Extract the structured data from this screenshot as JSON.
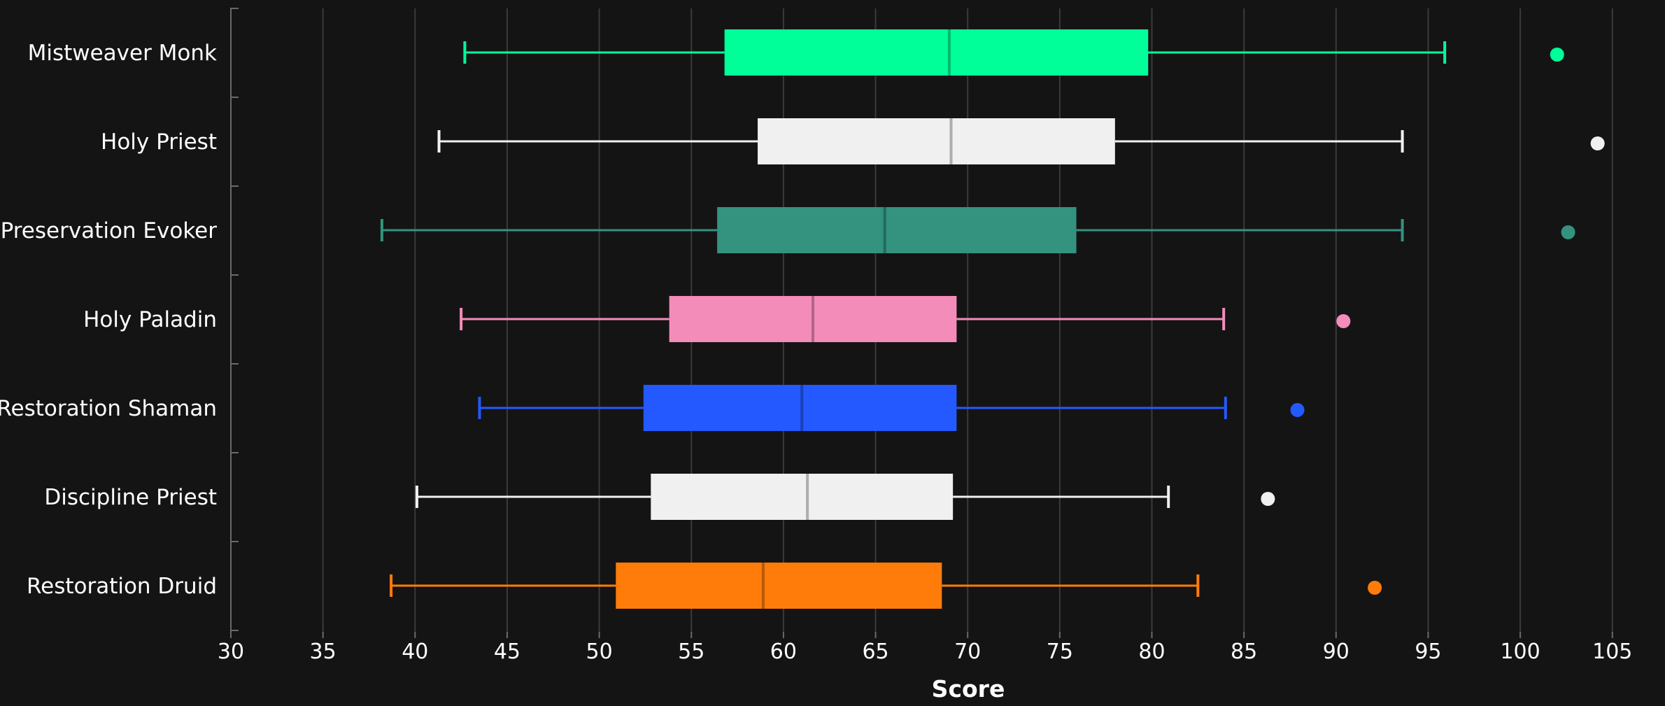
{
  "chart_data": {
    "type": "boxplot",
    "orientation": "horizontal",
    "xlabel": "Score",
    "xlim": [
      30,
      107
    ],
    "xticks": [
      30,
      35,
      40,
      45,
      50,
      55,
      60,
      65,
      70,
      75,
      80,
      85,
      90,
      95,
      100,
      105
    ],
    "grid": "vertical",
    "background": "#141414",
    "series": [
      {
        "name": "Mistweaver Monk",
        "color": "#00FF98",
        "whisker_low": 42.7,
        "q1": 56.8,
        "median": 69.0,
        "q3": 79.8,
        "whisker_high": 95.9,
        "outliers": [
          102.0
        ]
      },
      {
        "name": "Holy Priest",
        "color": "#F0F0F0",
        "whisker_low": 41.3,
        "q1": 58.6,
        "median": 69.1,
        "q3": 78.0,
        "whisker_high": 93.6,
        "outliers": [
          104.2
        ]
      },
      {
        "name": "Preservation Evoker",
        "color": "#33937F",
        "whisker_low": 38.2,
        "q1": 56.4,
        "median": 65.5,
        "q3": 75.9,
        "whisker_high": 93.6,
        "outliers": [
          102.6
        ]
      },
      {
        "name": "Holy Paladin",
        "color": "#F48CBA",
        "whisker_low": 42.5,
        "q1": 53.8,
        "median": 61.6,
        "q3": 69.4,
        "whisker_high": 83.9,
        "outliers": [
          90.4
        ]
      },
      {
        "name": "Restoration Shaman",
        "color": "#2459FF",
        "whisker_low": 43.5,
        "q1": 52.4,
        "median": 61.0,
        "q3": 69.4,
        "whisker_high": 84.0,
        "outliers": [
          87.9
        ]
      },
      {
        "name": "Discipline Priest",
        "color": "#F0F0F0",
        "whisker_low": 40.1,
        "q1": 52.8,
        "median": 61.3,
        "q3": 69.2,
        "whisker_high": 80.9,
        "outliers": [
          86.3
        ]
      },
      {
        "name": "Restoration Druid",
        "color": "#FF7C0A",
        "whisker_low": 38.7,
        "q1": 50.9,
        "median": 58.9,
        "q3": 68.6,
        "whisker_high": 82.5,
        "outliers": [
          92.1
        ]
      }
    ]
  }
}
